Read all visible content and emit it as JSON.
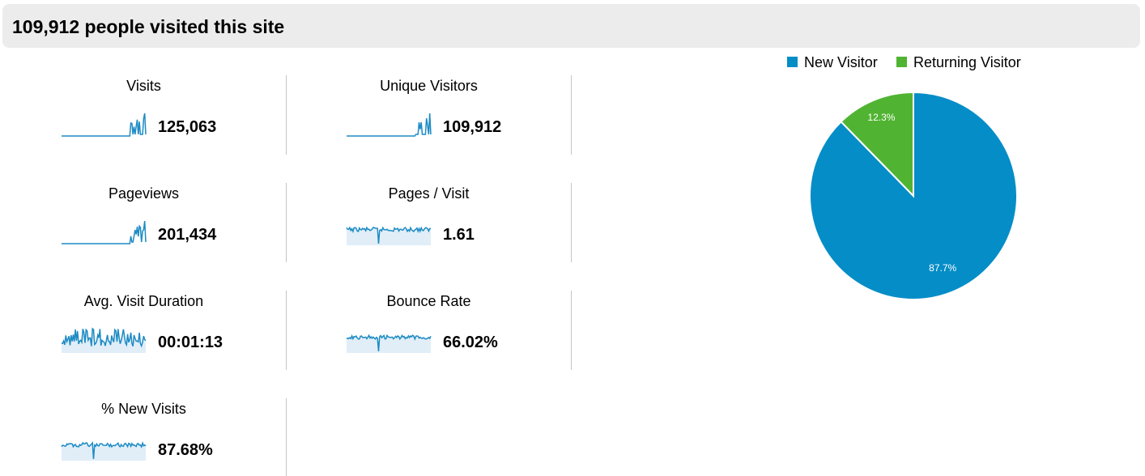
{
  "header": {
    "title": "109,912 people visited this site"
  },
  "metrics": [
    {
      "label": "Visits",
      "value": "125,063",
      "spark": "spike"
    },
    {
      "label": "Unique Visitors",
      "value": "109,912",
      "spark": "spike"
    },
    {
      "label": "Pageviews",
      "value": "201,434",
      "spark": "spike"
    },
    {
      "label": "Pages / Visit",
      "value": "1.61",
      "spark": "flat"
    },
    {
      "label": "Avg. Visit Duration",
      "value": "00:01:13",
      "spark": "noisy"
    },
    {
      "label": "Bounce Rate",
      "value": "66.02%",
      "spark": "flat"
    },
    {
      "label": "% New Visits",
      "value": "87.68%",
      "spark": "flat"
    }
  ],
  "colors": {
    "new": "#058dc7",
    "returning": "#50b432",
    "spark": "#1d8bc4",
    "spark_fill": "#e1eef8"
  },
  "chart_data": {
    "type": "pie",
    "labels": [
      "New Visitor",
      "Returning Visitor"
    ],
    "values": [
      87.7,
      12.3
    ],
    "value_labels": [
      "87.7%",
      "12.3%"
    ],
    "colors": [
      "#058dc7",
      "#50b432"
    ],
    "legend": "top"
  }
}
